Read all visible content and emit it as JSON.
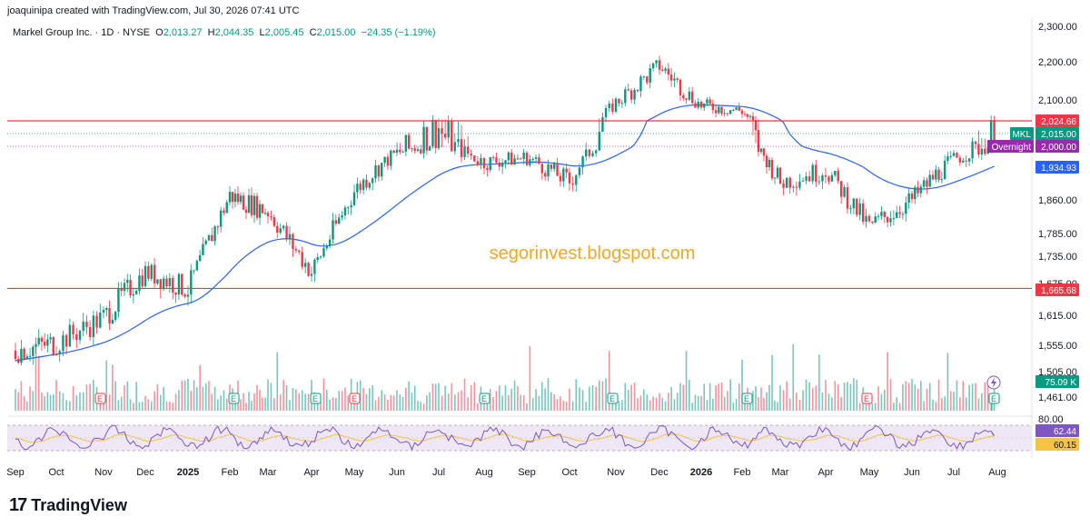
{
  "header": {
    "credit": "joaquinipa created with TradingView.com, Jul 30, 2026 07:41 UTC",
    "symbol_line": "Markel Group Inc. · 1D · NYSE",
    "o_label": "O",
    "o": "2,013.27",
    "h_label": "H",
    "h": "2,044.35",
    "l_label": "L",
    "l": "2,005.45",
    "c_label": "C",
    "c": "2,015.00",
    "change": "−24.35 (−1.19%)"
  },
  "watermark": "segorinvest.blogspot.com",
  "brand": {
    "logo": "17",
    "name": "TradingView"
  },
  "colors": {
    "up": "#089981",
    "down": "#f23645",
    "ma": "#2962ff",
    "resistance": "#f23645",
    "rsi": "#7e57c2",
    "rsi_ma": "#f5c242",
    "watermark": "#f5a623",
    "overnight": "#9c27b0"
  },
  "price_axis": {
    "ticks": [
      "2,300.00",
      "2,200.00",
      "2,100.00",
      "1,860.00",
      "1,785.00",
      "1,735.00",
      "1,675.00",
      "1,615.00",
      "1,555.00",
      "1,505.00",
      "1,461.00"
    ]
  },
  "rsi_axis": {
    "ticks": [
      "80.00"
    ]
  },
  "x_axis": {
    "labels": [
      "Sep",
      "Oct",
      "Nov",
      "Dec",
      "2025",
      "Feb",
      "Mar",
      "Apr",
      "May",
      "Jun",
      "Jul",
      "Aug",
      "Sep",
      "Oct",
      "Nov",
      "Dec",
      "2026",
      "Feb",
      "Mar",
      "Apr",
      "May",
      "Jun",
      "Jul",
      "Aug"
    ],
    "bold": [
      "2025",
      "2026"
    ]
  },
  "tags": {
    "resistance_upper": "2,024.66",
    "symbol": "MKL",
    "last": "2,015.00",
    "overnight_label": "Overnight",
    "overnight": "2,000.00",
    "ma": "1,934.93",
    "support": "1,665.68",
    "volume": "75.09 K",
    "rsi": "62.44",
    "rsi_ma": "60.15"
  },
  "event_markers": {
    "earnings_label": "E"
  },
  "chart_data": {
    "type": "candlestick",
    "title": "Markel Group Inc. · 1D · NYSE",
    "symbol": "MKL",
    "exchange": "NYSE",
    "interval": "1D",
    "last_ohlc": {
      "open": 2013.27,
      "high": 2044.35,
      "low": 2005.45,
      "close": 2015.0
    },
    "change": -24.35,
    "change_pct": -1.19,
    "y_range": [
      1461,
      2300
    ],
    "horizontal_lines": [
      {
        "value": 2024.66,
        "color": "#f23645"
      },
      {
        "value": 1665.68,
        "color": "#f23645"
      }
    ],
    "moving_average_last": 1934.93,
    "overnight": 2000.0,
    "volume_last": "75.09 K",
    "rsi_last": 62.44,
    "rsi_ma_last": 60.15,
    "monthly_closes": [
      {
        "x": "Sep",
        "y": 1545
      },
      {
        "x": "Oct",
        "y": 1560
      },
      {
        "x": "Nov",
        "y": 1610
      },
      {
        "x": "Dec",
        "y": 1700
      },
      {
        "x": "2025",
        "y": 1665
      },
      {
        "x": "Feb",
        "y": 1870
      },
      {
        "x": "Mar",
        "y": 1835
      },
      {
        "x": "Apr",
        "y": 1700
      },
      {
        "x": "May",
        "y": 1880
      },
      {
        "x": "Jun",
        "y": 1980
      },
      {
        "x": "Jul",
        "y": 2020
      },
      {
        "x": "Aug",
        "y": 1950
      },
      {
        "x": "Sep",
        "y": 1965
      },
      {
        "x": "Oct",
        "y": 1900
      },
      {
        "x": "Nov",
        "y": 2090
      },
      {
        "x": "Dec",
        "y": 2190
      },
      {
        "x": "2026",
        "y": 2080
      },
      {
        "x": "Feb",
        "y": 2060
      },
      {
        "x": "Mar",
        "y": 1900
      },
      {
        "x": "Apr",
        "y": 1930
      },
      {
        "x": "May",
        "y": 1800
      },
      {
        "x": "Jun",
        "y": 1860
      },
      {
        "x": "Jul",
        "y": 1960
      },
      {
        "x": "Aug",
        "y": 2015
      }
    ]
  }
}
